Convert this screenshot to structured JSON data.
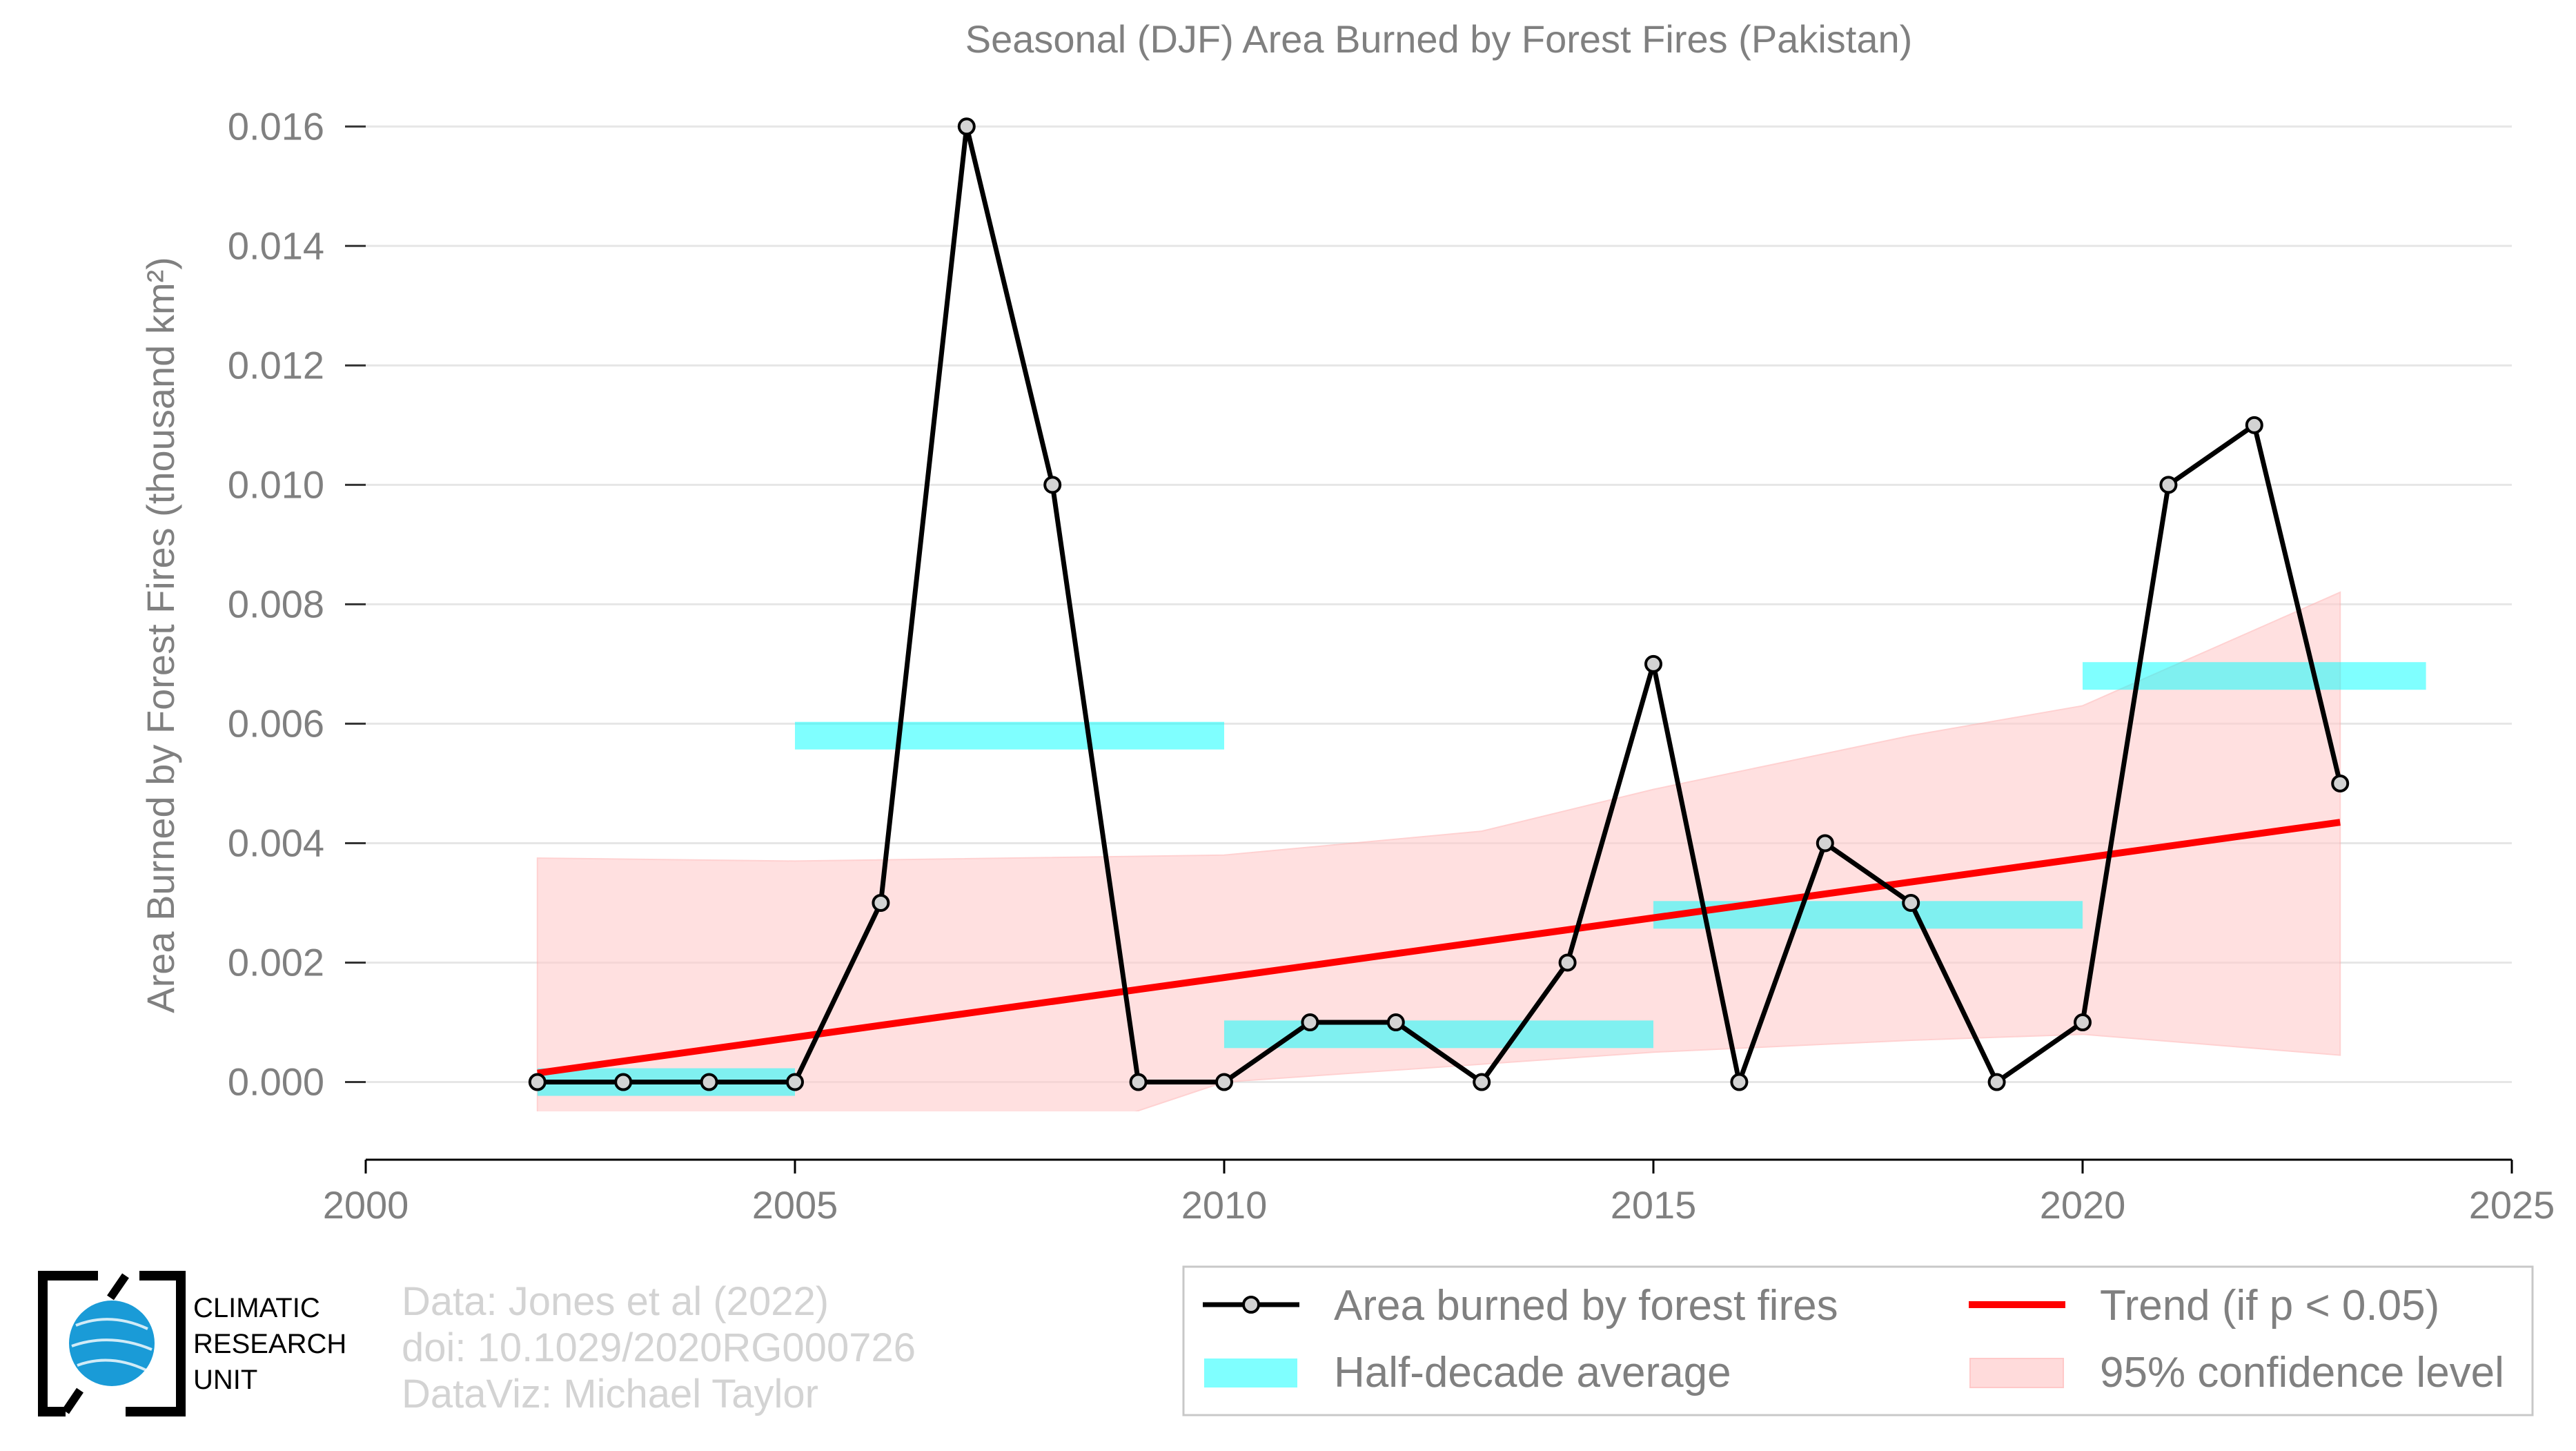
{
  "chart_data": {
    "type": "line",
    "title": "Seasonal (DJF) Area Burned by Forest Fires (Pakistan)",
    "ylabel": "Area Burned by Forest Fires (thousand km²)",
    "xlabel": "",
    "xlim": [
      2000,
      2025
    ],
    "ylim": [
      -0.0013,
      0.0165
    ],
    "x_ticks": [
      "2000",
      "2005",
      "2010",
      "2015",
      "2020",
      "2025"
    ],
    "y_ticks": [
      "0.000",
      "0.002",
      "0.004",
      "0.006",
      "0.008",
      "0.010",
      "0.012",
      "0.014",
      "0.016"
    ],
    "grid": "horizontal",
    "series": [
      {
        "name": "Area burned by forest fires",
        "color": "#000000",
        "marker_fill": "#d3d3d3",
        "x": [
          2002,
          2003,
          2004,
          2005,
          2006,
          2007,
          2008,
          2009,
          2010,
          2011,
          2012,
          2013,
          2014,
          2015,
          2016,
          2017,
          2018,
          2019,
          2020,
          2021,
          2022,
          2023
        ],
        "y": [
          0.0,
          0.0,
          0.0,
          0.0,
          0.003,
          0.016,
          0.01,
          0.0,
          0.0,
          0.001,
          0.001,
          0.0,
          0.002,
          0.007,
          0.0,
          0.004,
          0.003,
          0.0,
          0.001,
          0.01,
          0.011,
          0.005
        ]
      }
    ],
    "half_decade_average": {
      "name": "Half-decade average",
      "color": "#00ffff",
      "segments": [
        {
          "start": 2002,
          "end": 2005,
          "value": 0.0
        },
        {
          "start": 2005,
          "end": 2010,
          "value": 0.0058
        },
        {
          "start": 2010,
          "end": 2015,
          "value": 0.0008
        },
        {
          "start": 2015,
          "end": 2020,
          "value": 0.0028
        },
        {
          "start": 2020,
          "end": 2024,
          "value": 0.0068
        }
      ]
    },
    "trend": {
      "name": "Trend (if p < 0.05)",
      "color": "#ff0000",
      "x": [
        2002,
        2023
      ],
      "y": [
        0.00015,
        0.00435
      ]
    },
    "confidence": {
      "name": "95% confidence level",
      "color": "#ffcccc",
      "x": [
        2002,
        2005,
        2010,
        2013,
        2015,
        2018,
        2020,
        2023
      ],
      "upper": [
        0.00375,
        0.0037,
        0.0038,
        0.0042,
        0.0049,
        0.0058,
        0.0063,
        0.0082
      ],
      "lower": [
        -0.0034,
        -0.0024,
        0.0,
        0.0003,
        0.0005,
        0.0007,
        0.0008,
        0.00045
      ]
    },
    "legend_placement": "bottom-right"
  },
  "legend": {
    "line_label": "Area burned by forest fires",
    "avg_label": "Half-decade average",
    "trend_label": "Trend (if p < 0.05)",
    "ci_label": "95% confidence level"
  },
  "credits": {
    "line1": "Data: Jones et al (2022)",
    "line2": "doi: 10.1029/2020RG000726",
    "line3": "DataViz: Michael Taylor"
  },
  "logo": {
    "line1": "CLIMATIC",
    "line2": "RESEARCH",
    "line3": "UNIT"
  },
  "colors": {
    "axis_text": "#808080",
    "grid": "#e6e6e6",
    "credit_text": "#d3d3d3"
  }
}
